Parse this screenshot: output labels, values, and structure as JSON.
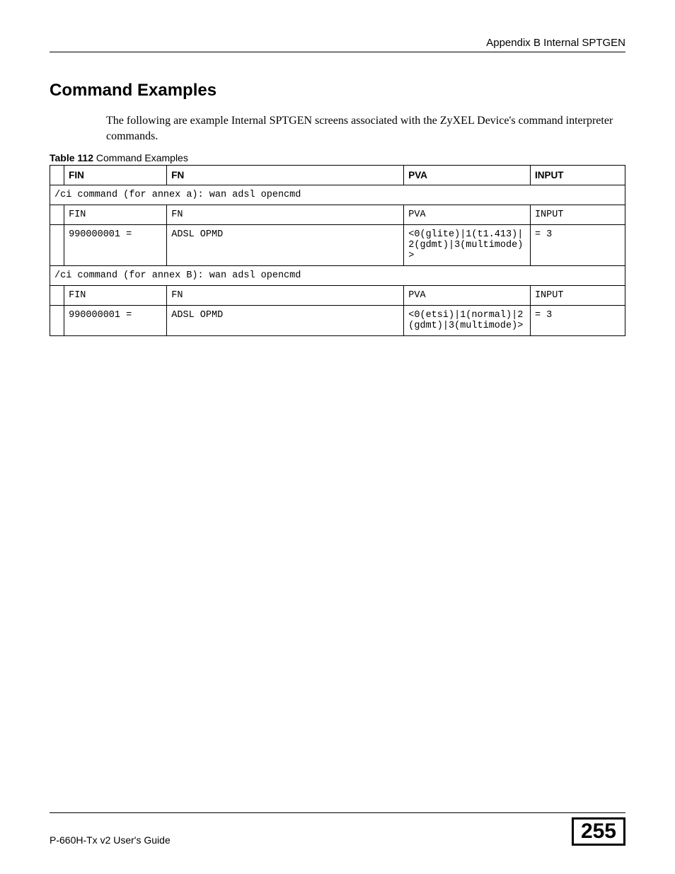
{
  "header": {
    "right_text": "Appendix B Internal SPTGEN"
  },
  "section": {
    "title": "Command Examples",
    "intro": "The following are example Internal SPTGEN screens associated with the ZyXEL Device's command interpreter commands."
  },
  "table": {
    "caption_bold": "Table 112",
    "caption_rest": "   Command Examples",
    "headers": {
      "fin": "FIN",
      "fn": "FN",
      "pva": "PVA",
      "input": "INPUT"
    },
    "rows": [
      {
        "type": "span",
        "text": "/ci command (for annex a): wan adsl opencmd"
      },
      {
        "type": "data",
        "fin": "FIN",
        "fn": "FN",
        "pva": "PVA",
        "input": "INPUT"
      },
      {
        "type": "data",
        "fin": "990000001 =",
        "fn": "ADSL OPMD",
        "pva": "<0(glite)|1(t1.413)|2(gdmt)|3(multimode)>",
        "input": "= 3"
      },
      {
        "type": "span",
        "text": "/ci command (for annex B): wan adsl opencmd"
      },
      {
        "type": "data",
        "fin": "FIN",
        "fn": "FN",
        "pva": "PVA",
        "input": "INPUT"
      },
      {
        "type": "data",
        "fin": "990000001 =",
        "fn": "ADSL OPMD",
        "pva": "<0(etsi)|1(normal)|2(gdmt)|3(multimode)>",
        "input": "= 3"
      }
    ]
  },
  "footer": {
    "guide": "P-660H-Tx v2 User's Guide",
    "page": "255"
  }
}
